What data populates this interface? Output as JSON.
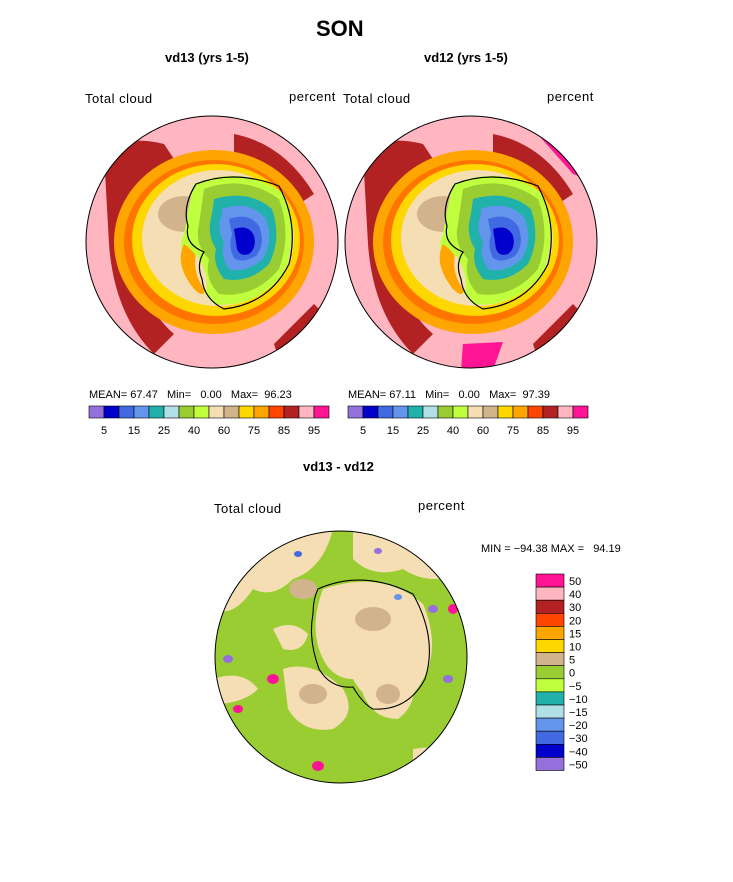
{
  "main_title": "SON",
  "panels": [
    {
      "title": "vd13 (yrs 1-5)",
      "left_label": "Total cloud",
      "right_label": "percent",
      "stats": {
        "mean_label": "MEAN=",
        "mean": "67.47",
        "min_label": "Min=",
        "min": "0.00",
        "max_label": "Max=",
        "max": "96.23"
      }
    },
    {
      "title": "vd12 (yrs 1-5)",
      "left_label": "Total cloud",
      "right_label": "percent",
      "stats": {
        "mean_label": "MEAN=",
        "mean": "67.11",
        "min_label": "Min=",
        "min": "0.00",
        "max_label": "Max=",
        "max": "97.39"
      }
    }
  ],
  "colorbar_top": {
    "colors": [
      "#9370db",
      "#0000cd",
      "#4169e1",
      "#6495ed",
      "#20b2aa",
      "#b0e0e6",
      "#9acd32",
      "#c0ff3e",
      "#f5deb3",
      "#d2b48c",
      "#ffd700",
      "#ffa500",
      "#ff4500",
      "#b22222",
      "#ffb6c1",
      "#ff1493"
    ],
    "tick_labels": [
      "5",
      "15",
      "25",
      "40",
      "60",
      "75",
      "85",
      "95"
    ]
  },
  "diff_panel": {
    "title": "vd13 - vd12",
    "left_label": "Total cloud",
    "right_label": "percent",
    "minmax": "MIN = −94.38 MAX =   94.19"
  },
  "colorbar_diff": {
    "colors": [
      "#ff1493",
      "#ffb6c1",
      "#b22222",
      "#ff4500",
      "#ffa500",
      "#ffd700",
      "#d2b48c",
      "#9acd32",
      "#c0ff3e",
      "#20b2aa",
      "#b0e0e6",
      "#6495ed",
      "#4169e1",
      "#0000cd",
      "#9370db"
    ],
    "tick_labels": [
      "50",
      "40",
      "30",
      "20",
      "15",
      "10",
      "5",
      "0",
      "−5",
      "−10",
      "−15",
      "−20",
      "−30",
      "−40",
      "−50"
    ]
  }
}
